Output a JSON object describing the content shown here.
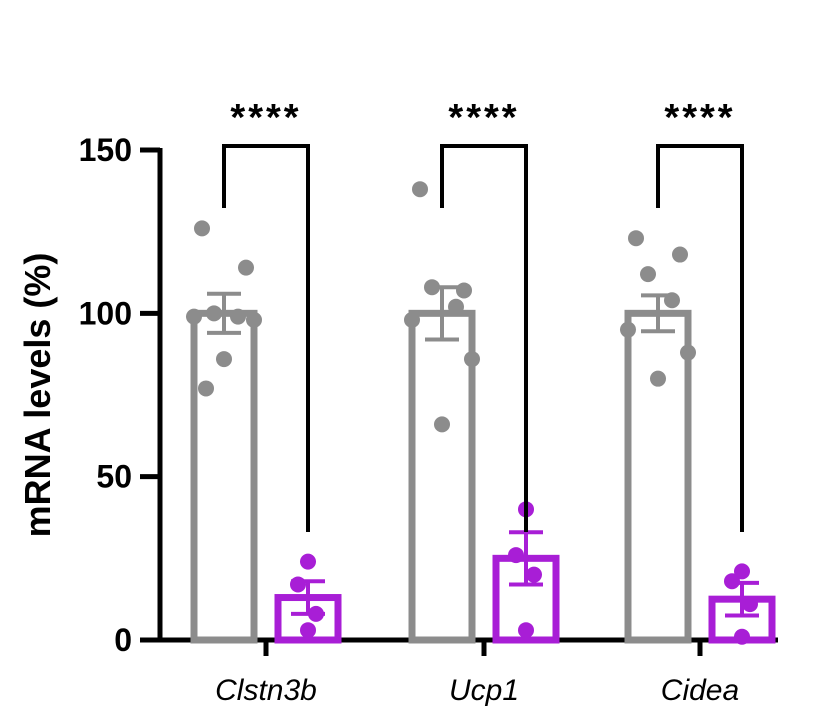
{
  "chart_data": {
    "type": "bar",
    "ylabel": "mRNA levels (%)",
    "xlabel": "",
    "title": "",
    "ylim": [
      0,
      150
    ],
    "yticks": [
      0,
      50,
      100,
      150
    ],
    "categories": [
      "Clstn3b",
      "Ucp1",
      "Cidea"
    ],
    "series": [
      {
        "color": "#8c8c8c",
        "values": [
          100,
          100,
          100
        ],
        "sem": [
          6,
          8,
          5.5
        ],
        "points": [
          [
            126,
            114,
            100,
            99,
            99,
            98,
            86,
            77
          ],
          [
            138,
            107,
            108,
            102,
            98,
            86,
            66
          ],
          [
            123,
            118,
            112,
            104,
            95,
            88,
            80
          ]
        ]
      },
      {
        "color": "#a81ed6",
        "values": [
          13,
          25,
          12.5
        ],
        "sem": [
          5,
          8,
          5
        ],
        "points": [
          [
            24,
            17,
            8,
            3
          ],
          [
            40,
            26,
            20,
            3
          ],
          [
            21,
            18,
            11,
            1
          ]
        ]
      }
    ],
    "significance": [
      "****",
      "****",
      "****"
    ],
    "grid": false,
    "legend": "none"
  }
}
